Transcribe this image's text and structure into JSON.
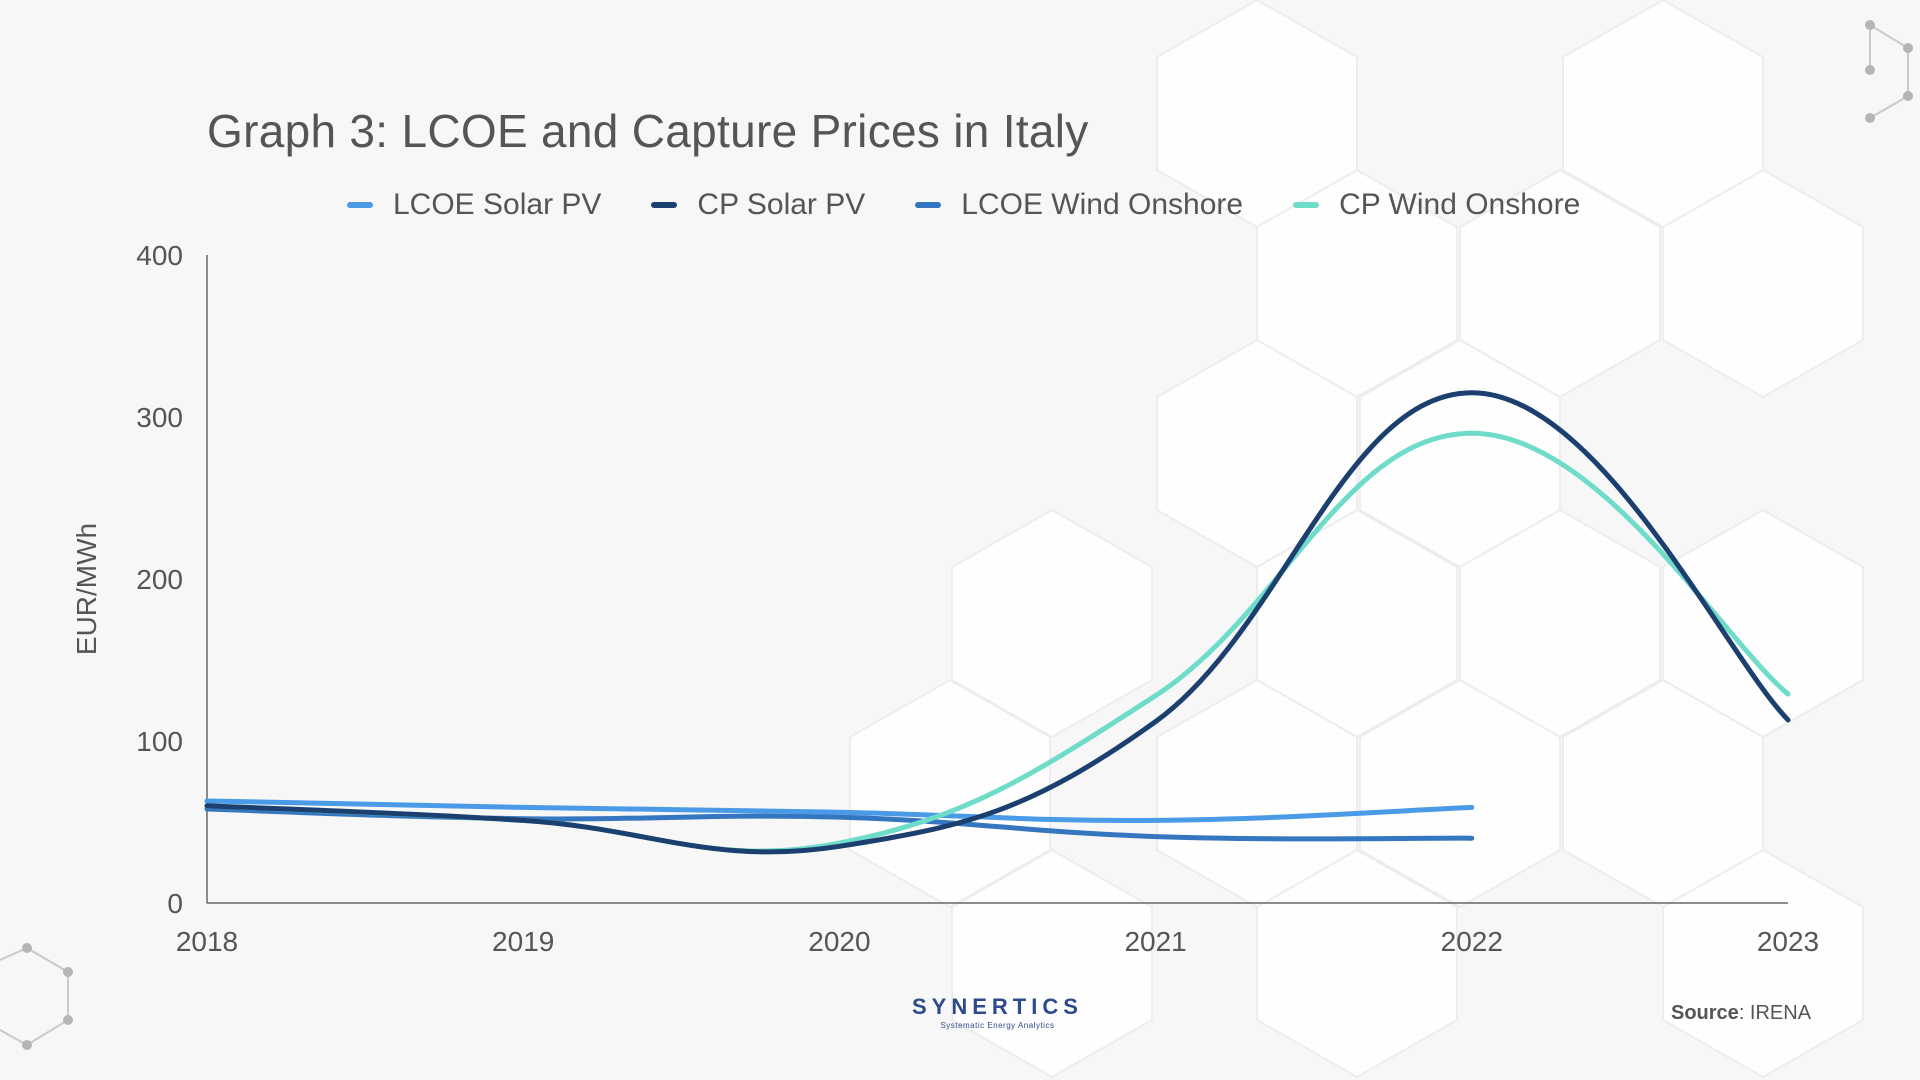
{
  "chart_data": {
    "type": "line",
    "title": "Graph 3: LCOE and Capture Prices in Italy",
    "xlabel": "",
    "ylabel": "EUR/MWh",
    "ylim": [
      0,
      400
    ],
    "yticks": [
      "0",
      "100",
      "200",
      "300",
      "400"
    ],
    "x": [
      "2018",
      "2019",
      "2020",
      "2021",
      "2022",
      "2023"
    ],
    "legend_position": "top",
    "series": [
      {
        "name": "LCOE Solar PV",
        "color": "#4a9ae8",
        "x": [
          "2018",
          "2019",
          "2020",
          "2021",
          "2022"
        ],
        "values": [
          63,
          59,
          56,
          51,
          59
        ]
      },
      {
        "name": "CP Solar PV",
        "color": "#1b3f6e",
        "x": [
          "2018",
          "2019",
          "2020",
          "2021",
          "2022",
          "2023"
        ],
        "values": [
          60,
          51,
          35,
          112,
          315,
          113
        ]
      },
      {
        "name": "LCOE Wind Onshore",
        "color": "#3576c0",
        "x": [
          "2018",
          "2019",
          "2020",
          "2021",
          "2022"
        ],
        "values": [
          58,
          52,
          53,
          41,
          40
        ]
      },
      {
        "name": "CP Wind Onshore",
        "color": "#6fdcca",
        "x": [
          "2018",
          "2019",
          "2020",
          "2021",
          "2022",
          "2023"
        ],
        "values": [
          60,
          51,
          37,
          128,
          290,
          129
        ]
      }
    ]
  },
  "brand": {
    "name": "SYNERTICS",
    "tagline": "Systematic Energy Analytics",
    "color": "#2c4a8c"
  },
  "source": {
    "label": "Source",
    "value": ": IRENA"
  }
}
